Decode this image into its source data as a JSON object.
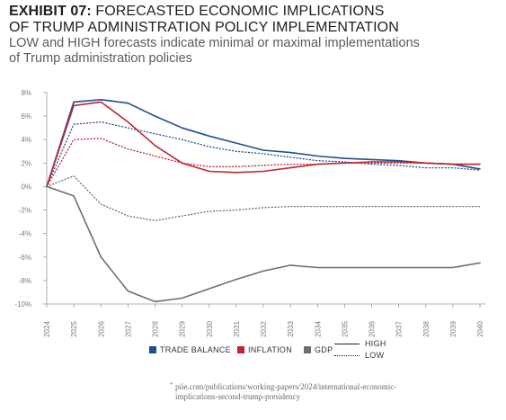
{
  "header": {
    "exhibit_label": "EXHIBIT 07:",
    "title_line1": "FORECASTED ECONOMIC IMPLICATIONS",
    "title_line2": "OF TRUMP ADMINISTRATION POLICY IMPLEMENTATION",
    "subtitle_line1": "LOW and HIGH forecasts indicate minimal or maximal implementations",
    "subtitle_line2": "of Trump administration policies"
  },
  "legend": {
    "trade_balance": "TRADE BALANCE",
    "inflation": "INFLATION",
    "gdp": "GDP",
    "high": "HIGH",
    "low": "LOW"
  },
  "source": {
    "marker": "*",
    "line1": "piie.com/publications/working-papers/2024/international-economic-",
    "line2": "implications-second-trump-presidency"
  },
  "colors": {
    "trade_balance": "#1f4e8c",
    "inflation": "#c0262d",
    "gdp": "#6e6e6e",
    "axis": "#9a9a9a",
    "tick_text": "#7a7a7a"
  },
  "chart_data": {
    "type": "line",
    "x": [
      2024,
      2025,
      2026,
      2027,
      2028,
      2029,
      2030,
      2031,
      2032,
      2033,
      2034,
      2035,
      2036,
      2037,
      2038,
      2039,
      2040
    ],
    "y_ticks": [
      "8%",
      "6%",
      "4%",
      "2%",
      "0%",
      "-2%",
      "-4%",
      "-6%",
      "-8%",
      "-10%"
    ],
    "ylim": [
      -10,
      8
    ],
    "y_unit": "%",
    "grid": false,
    "legend_position": "bottom",
    "series": [
      {
        "name": "TRADE BALANCE",
        "scenario": "HIGH",
        "color_key": "trade_balance",
        "style": "solid",
        "values": [
          0,
          7.2,
          7.4,
          7.1,
          6.0,
          5.0,
          4.3,
          3.7,
          3.1,
          2.9,
          2.6,
          2.4,
          2.3,
          2.2,
          2.0,
          1.9,
          1.5
        ]
      },
      {
        "name": "TRADE BALANCE",
        "scenario": "LOW",
        "color_key": "trade_balance",
        "style": "dotted",
        "values": [
          0,
          5.3,
          5.5,
          5.0,
          4.5,
          4.0,
          3.4,
          3.0,
          2.8,
          2.5,
          2.2,
          2.1,
          1.9,
          1.8,
          1.6,
          1.6,
          1.4
        ]
      },
      {
        "name": "INFLATION",
        "scenario": "HIGH",
        "color_key": "inflation",
        "style": "solid",
        "values": [
          0,
          6.9,
          7.2,
          5.5,
          3.5,
          2.0,
          1.3,
          1.2,
          1.3,
          1.6,
          1.9,
          2.0,
          2.1,
          2.1,
          2.0,
          1.9,
          1.9
        ]
      },
      {
        "name": "INFLATION",
        "scenario": "LOW",
        "color_key": "inflation",
        "style": "dotted",
        "values": [
          0,
          4.0,
          4.1,
          3.2,
          2.6,
          2.0,
          1.7,
          1.7,
          1.8,
          1.9,
          1.9,
          2.0,
          2.0,
          2.0,
          2.0,
          1.9,
          1.9
        ]
      },
      {
        "name": "GDP",
        "scenario": "HIGH",
        "color_key": "gdp",
        "style": "solid",
        "values": [
          0,
          -0.8,
          -6.0,
          -8.9,
          -9.8,
          -9.5,
          -8.7,
          -7.9,
          -7.2,
          -6.7,
          -6.9,
          -6.9,
          -6.9,
          -6.9,
          -6.9,
          -6.9,
          -6.5
        ]
      },
      {
        "name": "GDP",
        "scenario": "LOW",
        "color_key": "gdp",
        "style": "dotted",
        "values": [
          0,
          0.9,
          -1.5,
          -2.5,
          -2.9,
          -2.5,
          -2.1,
          -2.0,
          -1.8,
          -1.7,
          -1.7,
          -1.7,
          -1.7,
          -1.7,
          -1.7,
          -1.7,
          -1.7
        ]
      }
    ]
  }
}
